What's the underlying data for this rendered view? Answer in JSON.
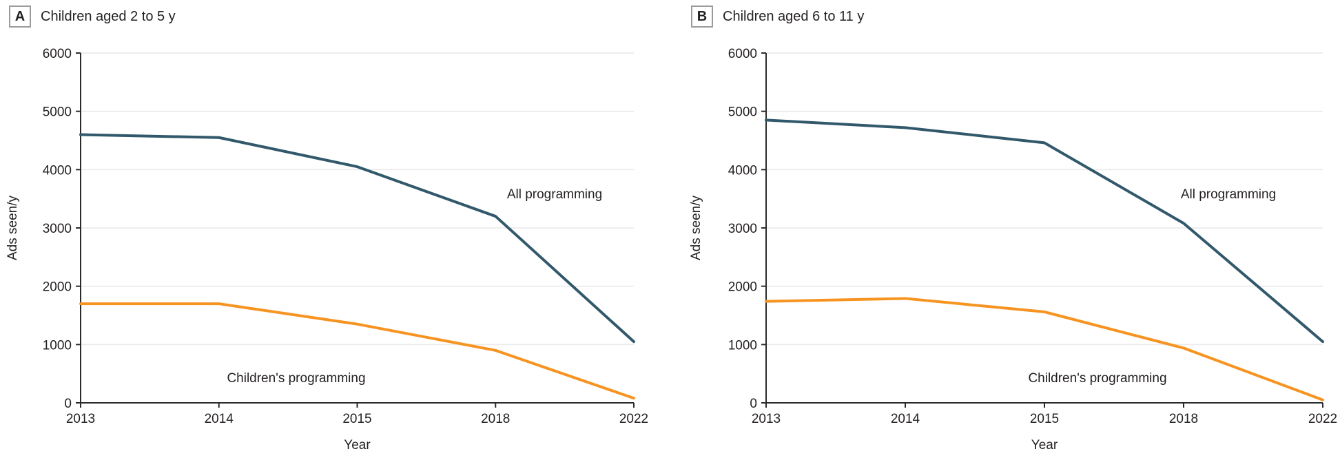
{
  "figure": {
    "panels": [
      {
        "tag": "A",
        "title": "Children aged 2 to 5 y"
      },
      {
        "tag": "B",
        "title": "Children aged 6 to 11 y"
      }
    ]
  },
  "colors": {
    "all_programming": "#32596B",
    "childrens_programming": "#F79421",
    "grid": "#E9E9E9",
    "axis": "#2B2B2B",
    "text": "#231F20"
  },
  "chart_data": [
    {
      "type": "line",
      "panel": "A",
      "title": "Children aged 2 to 5 y",
      "xlabel": "Year",
      "ylabel": "Ads seen/y",
      "categories": [
        "2013",
        "2014",
        "2015",
        "2018",
        "2022"
      ],
      "series": [
        {
          "name": "All programming",
          "values": [
            4600,
            4550,
            4050,
            3200,
            1050
          ],
          "color": "#32596B"
        },
        {
          "name": "Children's programming",
          "values": [
            1700,
            1700,
            1350,
            900,
            80
          ],
          "color": "#F79421"
        }
      ],
      "ylim": [
        0,
        6000
      ],
      "y_ticks": [
        0,
        1000,
        2000,
        3000,
        4000,
        5000,
        6000
      ],
      "grid": true,
      "legend": "inline-labels"
    },
    {
      "type": "line",
      "panel": "B",
      "title": "Children aged 6 to 11 y",
      "xlabel": "Year",
      "ylabel": "Ads seen/y",
      "categories": [
        "2013",
        "2014",
        "2015",
        "2018",
        "2022"
      ],
      "series": [
        {
          "name": "All programming",
          "values": [
            4850,
            4720,
            4460,
            3080,
            1050
          ],
          "color": "#32596B"
        },
        {
          "name": "Children's programming",
          "values": [
            1740,
            1790,
            1560,
            940,
            50
          ],
          "color": "#F79421"
        }
      ],
      "ylim": [
        0,
        6000
      ],
      "y_ticks": [
        0,
        1000,
        2000,
        3000,
        4000,
        5000,
        6000
      ],
      "grid": true,
      "legend": "inline-labels"
    }
  ]
}
